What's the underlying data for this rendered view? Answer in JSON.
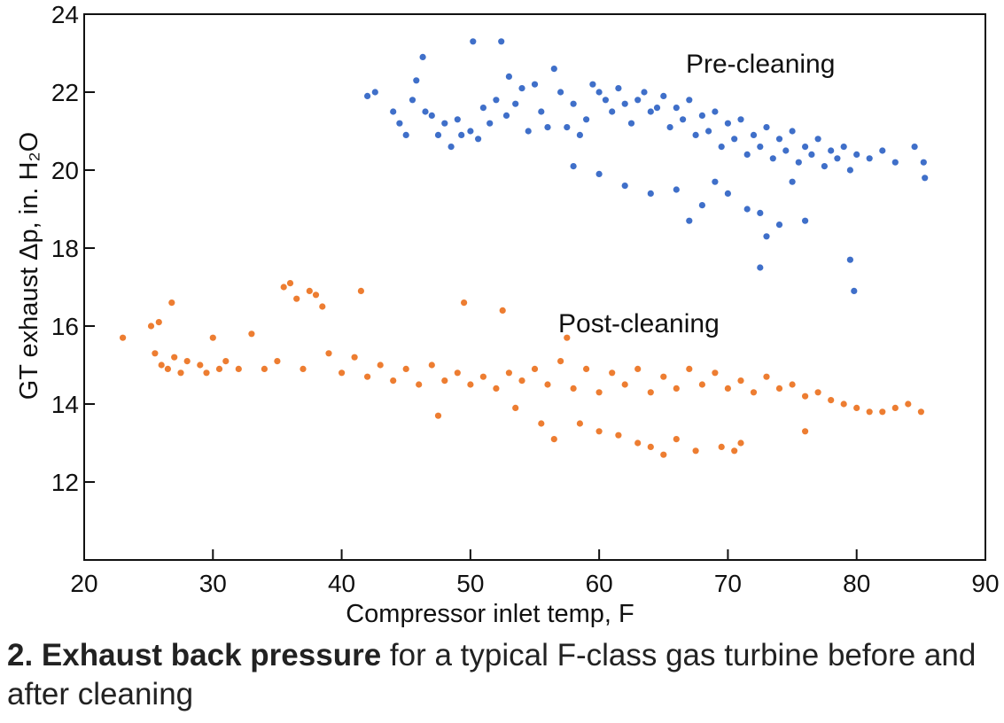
{
  "caption": {
    "bold": "2. Exhaust back pressure",
    "rest": " for a typical F-class gas turbine before and after cleaning"
  },
  "chart_data": {
    "type": "scatter",
    "xlabel": "Compressor inlet temp, F",
    "ylabel": "GT exhaust Δp, in. H₂O",
    "xlim": [
      20,
      90
    ],
    "ylim": [
      10,
      24
    ],
    "xticks": [
      20,
      30,
      40,
      50,
      60,
      70,
      80,
      90
    ],
    "yticks": [
      12,
      14,
      16,
      18,
      20,
      22,
      24
    ],
    "grid": false,
    "series": [
      {
        "name": "Pre-cleaning",
        "color": "#3F6FC9",
        "points": [
          [
            42,
            21.9
          ],
          [
            42.6,
            22.0
          ],
          [
            44,
            21.5
          ],
          [
            44.5,
            21.2
          ],
          [
            45,
            20.9
          ],
          [
            45.5,
            21.8
          ],
          [
            45.8,
            22.3
          ],
          [
            46.3,
            22.9
          ],
          [
            46.5,
            21.5
          ],
          [
            47,
            21.4
          ],
          [
            47.5,
            20.9
          ],
          [
            48,
            21.2
          ],
          [
            48.5,
            20.6
          ],
          [
            49,
            21.3
          ],
          [
            49.3,
            20.9
          ],
          [
            50,
            21.0
          ],
          [
            50.2,
            23.3
          ],
          [
            50.6,
            20.8
          ],
          [
            51,
            21.6
          ],
          [
            51.5,
            21.2
          ],
          [
            52,
            21.8
          ],
          [
            52.4,
            23.3
          ],
          [
            52.8,
            21.4
          ],
          [
            53,
            22.4
          ],
          [
            53.5,
            21.7
          ],
          [
            54,
            22.1
          ],
          [
            54.5,
            21.0
          ],
          [
            55,
            22.2
          ],
          [
            55.5,
            21.5
          ],
          [
            56,
            21.1
          ],
          [
            56.5,
            22.6
          ],
          [
            57,
            22.0
          ],
          [
            57.5,
            21.1
          ],
          [
            58,
            21.7
          ],
          [
            58.5,
            20.9
          ],
          [
            59,
            21.3
          ],
          [
            59.5,
            22.2
          ],
          [
            60,
            22.0
          ],
          [
            60.5,
            21.8
          ],
          [
            61,
            21.5
          ],
          [
            61.5,
            22.1
          ],
          [
            62,
            21.7
          ],
          [
            62.5,
            21.2
          ],
          [
            63,
            21.8
          ],
          [
            63.5,
            22.0
          ],
          [
            64,
            21.5
          ],
          [
            64.5,
            21.6
          ],
          [
            65,
            21.9
          ],
          [
            65.5,
            21.1
          ],
          [
            66,
            21.6
          ],
          [
            66.5,
            21.3
          ],
          [
            67,
            21.8
          ],
          [
            67.5,
            20.9
          ],
          [
            68,
            21.4
          ],
          [
            68.5,
            21.0
          ],
          [
            69,
            21.5
          ],
          [
            69.5,
            20.6
          ],
          [
            70,
            21.2
          ],
          [
            70.5,
            20.8
          ],
          [
            71,
            21.3
          ],
          [
            71.5,
            20.4
          ],
          [
            72,
            20.9
          ],
          [
            72.5,
            20.6
          ],
          [
            73,
            21.1
          ],
          [
            73.5,
            20.3
          ],
          [
            74,
            20.8
          ],
          [
            74.5,
            20.5
          ],
          [
            75,
            21.0
          ],
          [
            75.5,
            20.2
          ],
          [
            76,
            20.6
          ],
          [
            76.5,
            20.4
          ],
          [
            77,
            20.8
          ],
          [
            77.5,
            20.1
          ],
          [
            78,
            20.5
          ],
          [
            78.5,
            20.3
          ],
          [
            79,
            20.6
          ],
          [
            79.5,
            20.0
          ],
          [
            80,
            20.4
          ],
          [
            81,
            20.3
          ],
          [
            82,
            20.5
          ],
          [
            83,
            20.2
          ],
          [
            84.5,
            20.6
          ],
          [
            85.2,
            20.2
          ],
          [
            85.3,
            19.8
          ],
          [
            58,
            20.1
          ],
          [
            60,
            19.9
          ],
          [
            62,
            19.6
          ],
          [
            64,
            19.4
          ],
          [
            66,
            19.5
          ],
          [
            68,
            19.1
          ],
          [
            70,
            19.4
          ],
          [
            71.5,
            19.0
          ],
          [
            72.5,
            18.9
          ],
          [
            72.5,
            17.5
          ],
          [
            73,
            18.3
          ],
          [
            74,
            18.6
          ],
          [
            75,
            19.7
          ],
          [
            76,
            18.7
          ],
          [
            79.5,
            17.7
          ],
          [
            79.8,
            16.9
          ],
          [
            67,
            18.7
          ],
          [
            69,
            19.7
          ]
        ]
      },
      {
        "name": "Post-cleaning",
        "color": "#ED7D31",
        "points": [
          [
            23,
            15.7
          ],
          [
            25.2,
            16.0
          ],
          [
            25.5,
            15.3
          ],
          [
            25.8,
            16.1
          ],
          [
            26,
            15.0
          ],
          [
            26.5,
            14.9
          ],
          [
            26.8,
            16.6
          ],
          [
            27,
            15.2
          ],
          [
            27.5,
            14.8
          ],
          [
            28,
            15.1
          ],
          [
            29,
            15.0
          ],
          [
            29.5,
            14.8
          ],
          [
            30,
            15.7
          ],
          [
            30.5,
            14.9
          ],
          [
            31,
            15.1
          ],
          [
            32,
            14.9
          ],
          [
            33,
            15.8
          ],
          [
            34,
            14.9
          ],
          [
            35,
            15.1
          ],
          [
            35.5,
            17.0
          ],
          [
            36,
            17.1
          ],
          [
            36.5,
            16.7
          ],
          [
            37,
            14.9
          ],
          [
            37.5,
            16.9
          ],
          [
            38,
            16.8
          ],
          [
            38.5,
            16.5
          ],
          [
            39,
            15.3
          ],
          [
            40,
            14.8
          ],
          [
            41,
            15.2
          ],
          [
            41.5,
            16.9
          ],
          [
            42,
            14.7
          ],
          [
            43,
            15.0
          ],
          [
            44,
            14.6
          ],
          [
            45,
            14.9
          ],
          [
            46,
            14.5
          ],
          [
            47,
            15.0
          ],
          [
            48,
            14.6
          ],
          [
            49,
            14.8
          ],
          [
            49.5,
            16.6
          ],
          [
            50,
            14.5
          ],
          [
            51,
            14.7
          ],
          [
            52,
            14.4
          ],
          [
            52.5,
            16.4
          ],
          [
            53,
            14.8
          ],
          [
            54,
            14.6
          ],
          [
            55,
            14.9
          ],
          [
            55.5,
            13.5
          ],
          [
            56,
            14.5
          ],
          [
            57,
            15.1
          ],
          [
            57.5,
            15.7
          ],
          [
            58,
            14.4
          ],
          [
            59,
            14.9
          ],
          [
            60,
            14.3
          ],
          [
            61,
            14.8
          ],
          [
            62,
            14.5
          ],
          [
            63,
            14.9
          ],
          [
            64,
            14.3
          ],
          [
            65,
            14.7
          ],
          [
            66,
            14.4
          ],
          [
            67,
            14.9
          ],
          [
            68,
            14.5
          ],
          [
            69,
            14.8
          ],
          [
            70,
            14.4
          ],
          [
            71,
            14.6
          ],
          [
            72,
            14.3
          ],
          [
            73,
            14.7
          ],
          [
            74,
            14.4
          ],
          [
            75,
            14.5
          ],
          [
            76,
            14.2
          ],
          [
            77,
            14.3
          ],
          [
            78,
            14.1
          ],
          [
            79,
            14.0
          ],
          [
            80,
            13.9
          ],
          [
            81,
            13.8
          ],
          [
            82,
            13.8
          ],
          [
            83,
            13.9
          ],
          [
            84,
            14.0
          ],
          [
            85,
            13.8
          ],
          [
            56.5,
            13.1
          ],
          [
            58.5,
            13.5
          ],
          [
            60,
            13.3
          ],
          [
            61.5,
            13.2
          ],
          [
            63,
            13.0
          ],
          [
            64,
            12.9
          ],
          [
            65,
            12.7
          ],
          [
            66,
            13.1
          ],
          [
            67.5,
            12.8
          ],
          [
            69.5,
            12.9
          ],
          [
            70.5,
            12.8
          ],
          [
            71,
            13.0
          ],
          [
            76,
            13.3
          ],
          [
            47.5,
            13.7
          ],
          [
            53.5,
            13.9
          ]
        ]
      }
    ],
    "annotations": [
      "Pre-cleaning",
      "Post-cleaning"
    ]
  }
}
